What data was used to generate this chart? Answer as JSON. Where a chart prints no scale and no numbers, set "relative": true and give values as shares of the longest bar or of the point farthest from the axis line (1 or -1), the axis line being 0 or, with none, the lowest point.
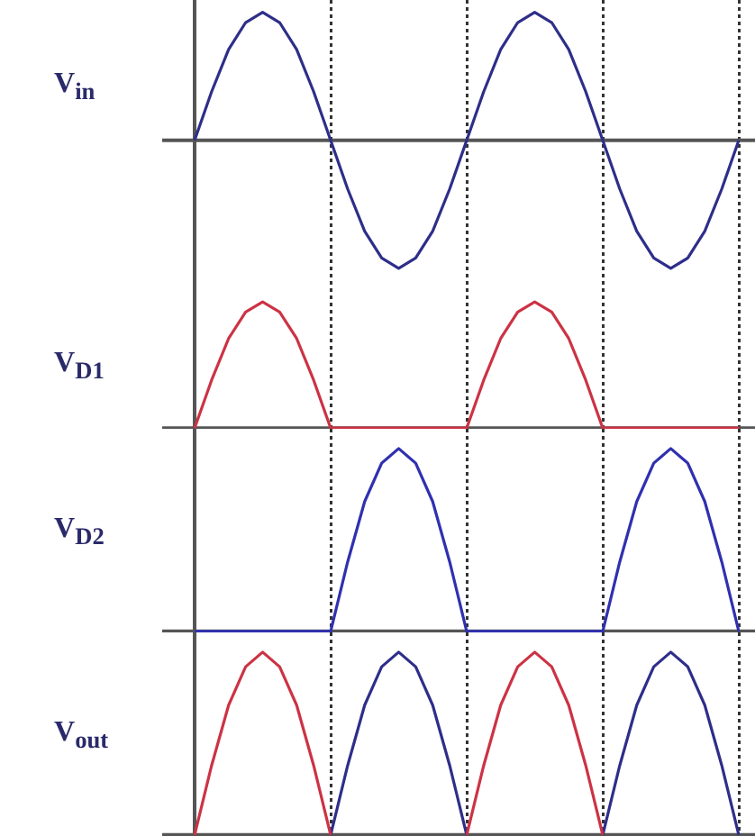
{
  "chart_data": [
    {
      "type": "line",
      "relative": true,
      "ylabel": "V$_{in}$",
      "tick_labels": false,
      "grid": "x",
      "marker": "none",
      "line_style": "solid",
      "categories": [
        null,
        null,
        null,
        null,
        null,
        null,
        null,
        null,
        null,
        null,
        null,
        null,
        null,
        null,
        null,
        null,
        null,
        null,
        null,
        null,
        null,
        null,
        null,
        null,
        null,
        null,
        null,
        null,
        null,
        null,
        null,
        null,
        null
      ],
      "series": [
        {
          "color": "#2e2e8a",
          "values": [
            0,
            0.38,
            0.71,
            0.92,
            1,
            0.92,
            0.71,
            0.38,
            0,
            -0.38,
            -0.71,
            -0.92,
            -1,
            -0.92,
            -0.71,
            -0.38,
            0,
            0.38,
            0.71,
            0.92,
            1,
            0.92,
            0.71,
            0.38,
            0,
            -0.38,
            -0.71,
            -0.92,
            -1,
            -0.92,
            -0.71,
            -0.38,
            0
          ]
        }
      ]
    },
    {
      "type": "line",
      "relative": true,
      "ylabel": "V$_{D1}$",
      "tick_labels": false,
      "grid": "x",
      "marker": "none",
      "line_style": "solid",
      "categories": [
        null,
        null,
        null,
        null,
        null,
        null,
        null,
        null,
        null,
        null,
        null,
        null,
        null,
        null,
        null,
        null,
        null,
        null,
        null,
        null,
        null,
        null,
        null,
        null,
        null,
        null,
        null,
        null,
        null,
        null,
        null,
        null,
        null
      ],
      "series": [
        {
          "color": "#cc3344",
          "values": [
            0,
            0.38,
            0.71,
            0.92,
            1,
            0.92,
            0.71,
            0.38,
            0,
            0,
            0,
            0,
            0,
            0,
            0,
            0,
            0,
            0.38,
            0.71,
            0.92,
            1,
            0.92,
            0.71,
            0.38,
            0,
            0,
            0,
            0,
            0,
            0,
            0,
            0,
            0
          ]
        }
      ]
    },
    {
      "type": "line",
      "relative": true,
      "ylabel": "V$_{D2}$",
      "tick_labels": false,
      "grid": "x",
      "marker": "none",
      "line_style": "solid",
      "categories": [
        null,
        null,
        null,
        null,
        null,
        null,
        null,
        null,
        null,
        null,
        null,
        null,
        null,
        null,
        null,
        null,
        null,
        null,
        null,
        null,
        null,
        null,
        null,
        null,
        null,
        null,
        null,
        null,
        null,
        null,
        null,
        null,
        null
      ],
      "series": [
        {
          "color": "#3030b0",
          "values": [
            0,
            0,
            0,
            0,
            0,
            0,
            0,
            0,
            0,
            0.38,
            0.71,
            0.92,
            1,
            0.92,
            0.71,
            0.38,
            0,
            0,
            0,
            0,
            0,
            0,
            0,
            0,
            0,
            0.38,
            0.71,
            0.92,
            1,
            0.92,
            0.71,
            0.38,
            0
          ]
        }
      ]
    },
    {
      "type": "line",
      "relative": true,
      "ylabel": "V$_{out}$",
      "tick_labels": false,
      "grid": "x",
      "marker": "none",
      "line_style": "solid",
      "categories": [
        null,
        null,
        null,
        null,
        null,
        null,
        null,
        null,
        null,
        null,
        null,
        null,
        null,
        null,
        null,
        null,
        null,
        null,
        null,
        null,
        null,
        null,
        null,
        null,
        null,
        null,
        null,
        null,
        null,
        null,
        null,
        null,
        null
      ],
      "series": [
        {
          "color": "#cc3344",
          "values": [
            0,
            0.38,
            0.71,
            0.92,
            1,
            0.92,
            0.71,
            0.38,
            0,
            null,
            null,
            null,
            null,
            null,
            null,
            null,
            0,
            0.38,
            0.71,
            0.92,
            1,
            0.92,
            0.71,
            0.38,
            0,
            null,
            null,
            null,
            null,
            null,
            null,
            null,
            null
          ]
        },
        {
          "color": "#2e2e8a",
          "values": [
            null,
            null,
            null,
            null,
            null,
            null,
            null,
            null,
            0,
            0.38,
            0.71,
            0.92,
            1,
            0.92,
            0.71,
            0.38,
            0,
            null,
            null,
            null,
            null,
            null,
            null,
            null,
            0,
            0.38,
            0.71,
            0.92,
            1,
            0.92,
            0.71,
            0.38,
            0
          ]
        }
      ]
    }
  ]
}
